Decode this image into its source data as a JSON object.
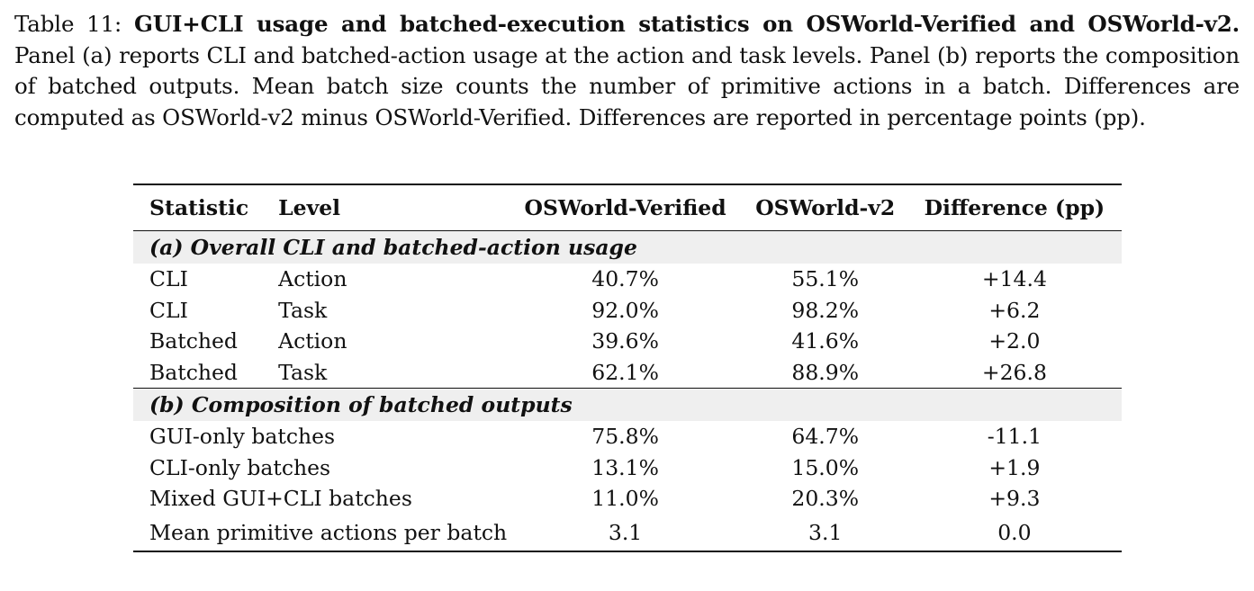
{
  "caption": {
    "label": "Table 11:",
    "bold_title": "GUI+CLI usage and batched-execution statistics on OSWorld-Verified and OSWorld-v2.",
    "text": "Panel (a) reports CLI and batched-action usage at the action and task levels. Panel (b) reports the composition of batched outputs. Mean batch size counts the number of primitive actions in a batch. Differences are computed as OSWorld-v2 minus OSWorld-Verified. Differences are reported in percentage points (pp)."
  },
  "table": {
    "headers": [
      "Statistic",
      "Level",
      "OSWorld-Verified",
      "OSWorld-v2",
      "Difference (pp)"
    ],
    "section_a": {
      "title": "(a) Overall CLI and batched-action usage",
      "rows": [
        {
          "statistic": "CLI",
          "level": "Action",
          "verified": "40.7%",
          "v2": "55.1%",
          "diff": "+14.4"
        },
        {
          "statistic": "CLI",
          "level": "Task",
          "verified": "92.0%",
          "v2": "98.2%",
          "diff": "+6.2"
        },
        {
          "statistic": "Batched",
          "level": "Action",
          "verified": "39.6%",
          "v2": "41.6%",
          "diff": "+2.0"
        },
        {
          "statistic": "Batched",
          "level": "Task",
          "verified": "62.1%",
          "v2": "88.9%",
          "diff": "+26.8"
        }
      ]
    },
    "section_b": {
      "title": "(b) Composition of batched outputs",
      "rows": [
        {
          "statistic": "GUI-only batches",
          "verified": "75.8%",
          "v2": "64.7%",
          "diff": "-11.1"
        },
        {
          "statistic": "CLI-only batches",
          "verified": "13.1%",
          "v2": "15.0%",
          "diff": "+1.9"
        },
        {
          "statistic": "Mixed GUI+CLI batches",
          "verified": "11.0%",
          "v2": "20.3%",
          "diff": "+9.3"
        },
        {
          "statistic": "Mean primitive actions per batch",
          "verified": "3.1",
          "v2": "3.1",
          "diff": "0.0"
        }
      ]
    }
  }
}
